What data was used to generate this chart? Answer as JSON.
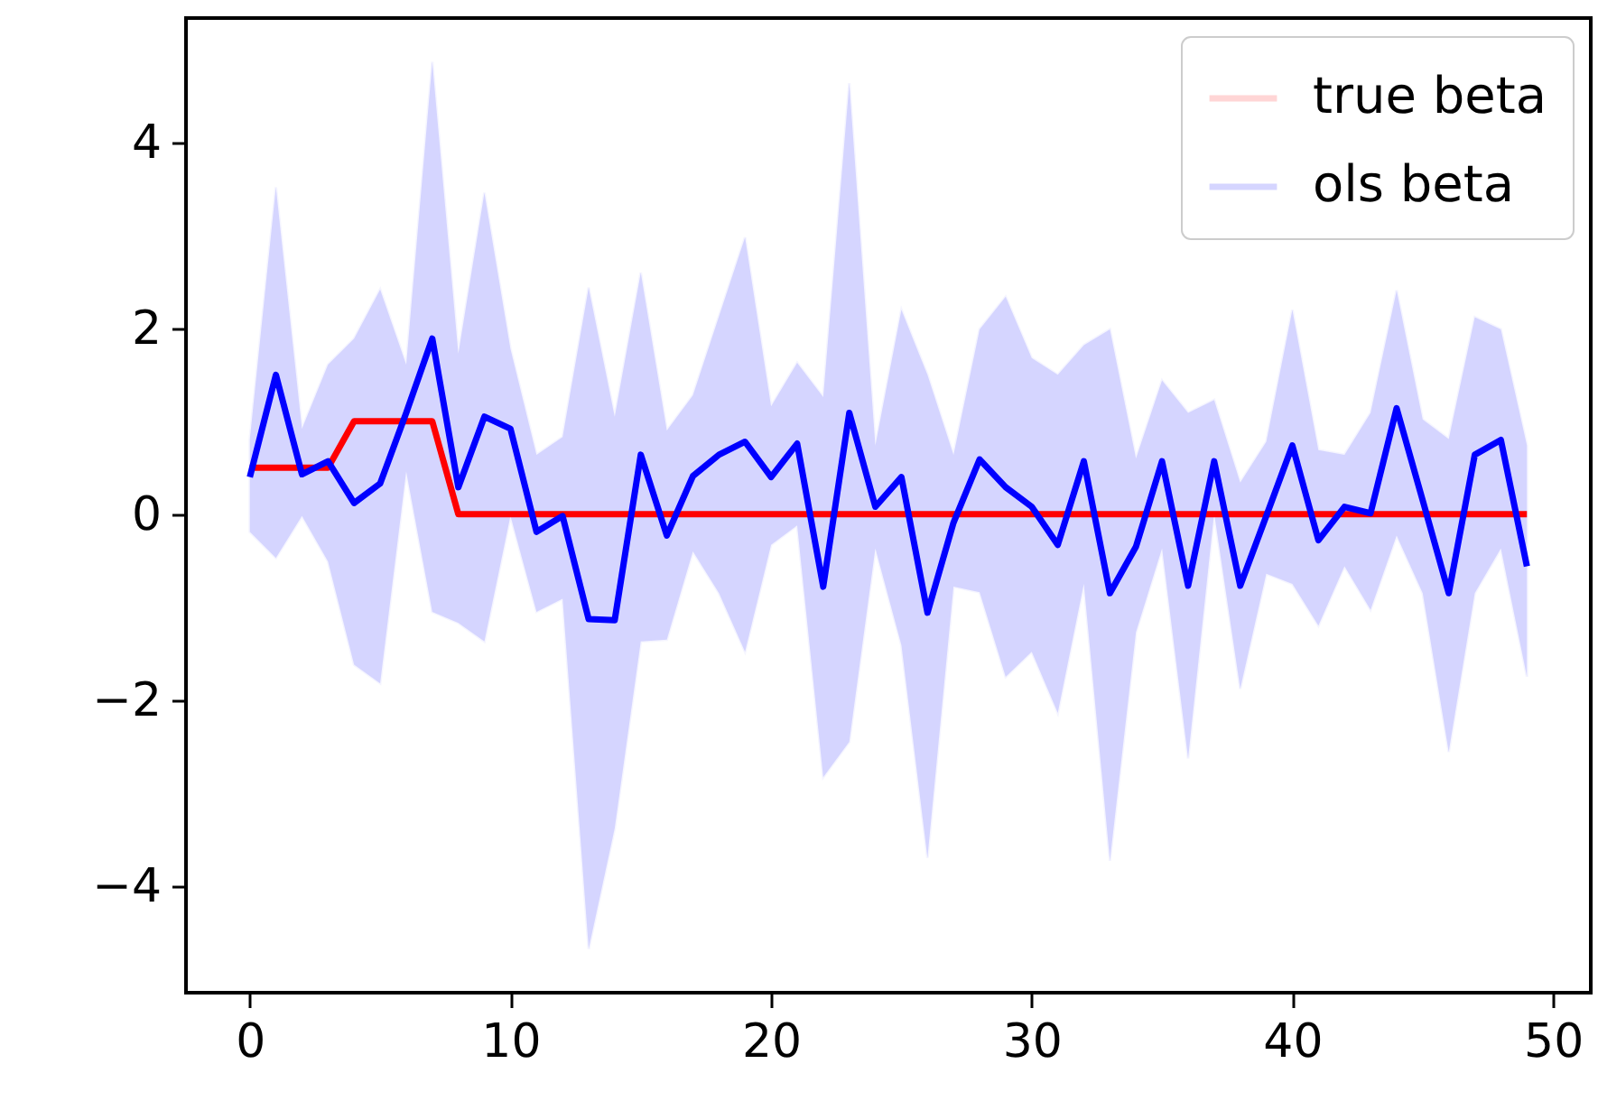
{
  "chart_data": {
    "type": "line",
    "x": [
      0,
      1,
      2,
      3,
      4,
      5,
      6,
      7,
      8,
      9,
      10,
      11,
      12,
      13,
      14,
      15,
      16,
      17,
      18,
      19,
      20,
      21,
      22,
      23,
      24,
      25,
      26,
      27,
      28,
      29,
      30,
      31,
      32,
      33,
      34,
      35,
      36,
      37,
      38,
      39,
      40,
      41,
      42,
      43,
      44,
      45,
      46,
      47,
      48,
      49
    ],
    "series": [
      {
        "name": "true beta",
        "color": "#ff0000",
        "values": [
          0.5,
          0.5,
          0.5,
          0.5,
          1,
          1,
          1,
          1,
          0,
          0,
          0,
          0,
          0,
          0,
          0,
          0,
          0,
          0,
          0,
          0,
          0,
          0,
          0,
          0,
          0,
          0,
          0,
          0,
          0,
          0,
          0,
          0,
          0,
          0,
          0,
          0,
          0,
          0,
          0,
          0,
          0,
          0,
          0,
          0,
          0,
          0,
          0,
          0,
          0,
          0
        ]
      },
      {
        "name": "ols beta",
        "color": "#0000ff",
        "values": [
          0.4,
          1.5,
          0.43,
          0.57,
          0.12,
          0.33,
          1.09,
          1.89,
          0.29,
          1.05,
          0.92,
          -0.19,
          -0.02,
          -1.13,
          -1.14,
          0.64,
          -0.23,
          0.41,
          0.64,
          0.78,
          0.4,
          0.76,
          -0.78,
          1.09,
          0.08,
          0.4,
          -1.06,
          -0.09,
          0.59,
          0.29,
          0.08,
          -0.33,
          0.57,
          -0.85,
          -0.35,
          0.57,
          -0.77,
          0.57,
          -0.77,
          -0.02,
          0.74,
          -0.28,
          0.08,
          0.01,
          1.14,
          0.15,
          -0.85,
          0.64,
          0.8,
          -0.56
        ],
        "lower": [
          -0.19,
          -0.47,
          -0.02,
          -0.51,
          -1.62,
          -1.82,
          0.46,
          -1.05,
          -1.17,
          -1.37,
          -0.02,
          -1.05,
          -0.91,
          -4.68,
          -3.38,
          -1.37,
          -1.35,
          -0.4,
          -0.85,
          -1.48,
          -0.33,
          -0.12,
          -2.83,
          -2.45,
          -0.37,
          -1.41,
          -3.7,
          -0.78,
          -0.84,
          -1.75,
          -1.48,
          -2.14,
          -0.75,
          -3.73,
          -1.27,
          -0.37,
          -2.63,
          0.01,
          -1.88,
          -0.64,
          -0.75,
          -1.2,
          -0.56,
          -1.03,
          -0.23,
          -0.85,
          -2.56,
          -0.85,
          -0.37,
          -1.75
        ],
        "upper": [
          0.81,
          3.52,
          0.92,
          1.61,
          1.89,
          2.42,
          1.61,
          4.87,
          1.73,
          3.46,
          1.78,
          0.64,
          0.83,
          2.44,
          1.05,
          2.6,
          0.9,
          1.28,
          2.13,
          2.98,
          1.16,
          1.63,
          1.26,
          4.64,
          0.74,
          2.2,
          1.5,
          0.64,
          1.99,
          2.34,
          1.68,
          1.5,
          1.82,
          1.99,
          0.6,
          1.44,
          1.09,
          1.23,
          0.34,
          0.78,
          2.2,
          0.69,
          0.64,
          1.09,
          2.41,
          1.02,
          0.81,
          2.12,
          1.99,
          0.74
        ]
      }
    ],
    "xlim": [
      -2.45,
      51.45
    ],
    "ylim": [
      -5.15,
      5.34
    ],
    "xticks": [
      0,
      10,
      20,
      30,
      40,
      50
    ],
    "yticks": [
      -4,
      -2,
      0,
      2,
      4
    ],
    "legend": "top right"
  }
}
